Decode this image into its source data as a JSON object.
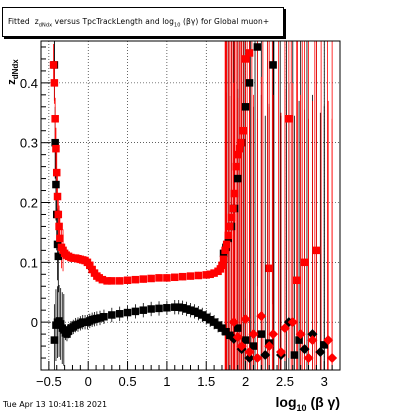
{
  "title": {
    "prefix": "Fitted",
    "z_main": "z",
    "z_sub": "dNdx",
    "middle": "versus TpcTrackLength and log",
    "log_sub": "10",
    "suffix": "(βγ) for Global muon+"
  },
  "timestamp": "Tue Apr 13 10:41:18 2021",
  "chart_data": {
    "type": "scatter",
    "title": "Fitted z_dNdx versus TpcTrackLength and log_10(βγ) for Global muon+",
    "xlabel": "log10(β γ)",
    "ylabel": "z_dNdx",
    "x_tick_labels": [
      "−0.5",
      "0",
      "0.5",
      "1",
      "1.5",
      "2",
      "2.5",
      "3"
    ],
    "y_tick_labels": [
      "0",
      "0.1",
      "0.2",
      "0.3",
      "0.4"
    ],
    "xlim": [
      -0.6,
      3.2
    ],
    "ylim": [
      -0.08,
      0.47
    ],
    "grid": true,
    "series": [
      {
        "color": "#000000",
        "marker": "square",
        "x": [
          -0.43,
          -0.41,
          -0.39,
          -0.37,
          -0.35,
          -0.33,
          -0.31,
          -0.29,
          -0.27,
          -0.25,
          -0.22,
          -0.19,
          -0.16,
          -0.13,
          -0.1,
          -0.07,
          -0.04,
          -0.01,
          0.02,
          0.05,
          0.08,
          0.11,
          0.15,
          0.2,
          0.3,
          0.4,
          0.5,
          0.6,
          0.7,
          0.8,
          0.9,
          1.0,
          1.1,
          1.15,
          1.2,
          1.25,
          1.3,
          1.35,
          1.4,
          1.45,
          1.5,
          1.55,
          1.6,
          1.65,
          1.7,
          1.75,
          1.8,
          1.85
        ],
        "y": [
          -0.03,
          -0.005,
          0.0,
          0.002,
          -0.003,
          -0.01,
          -0.013,
          -0.018,
          -0.02,
          -0.015,
          -0.01,
          -0.008,
          -0.005,
          -0.004,
          -0.002,
          0.0,
          0.0,
          0.0,
          0.002,
          0.004,
          0.005,
          0.006,
          0.007,
          0.009,
          0.012,
          0.014,
          0.016,
          0.018,
          0.02,
          0.022,
          0.023,
          0.024,
          0.025,
          0.025,
          0.024,
          0.022,
          0.02,
          0.018,
          0.015,
          0.012,
          0.008,
          0.004,
          0.0,
          -0.005,
          -0.01,
          -0.016,
          -0.022,
          -0.028
        ],
        "extra": [
          [
            -0.43,
            0.43
          ],
          [
            -0.42,
            0.3
          ],
          [
            -0.41,
            0.23
          ],
          [
            -0.4,
            0.18
          ],
          [
            -0.39,
            0.13
          ],
          [
            -0.38,
            0.11
          ],
          [
            1.72,
            0.115
          ],
          [
            1.75,
            0.125
          ],
          [
            1.78,
            0.14
          ],
          [
            1.82,
            0.16
          ],
          [
            1.86,
            0.19
          ],
          [
            1.9,
            0.24
          ],
          [
            1.95,
            0.3
          ],
          [
            2.0,
            0.36
          ],
          [
            2.05,
            0.4
          ],
          [
            2.15,
            0.46
          ],
          [
            2.35,
            0.43
          ],
          [
            1.9,
            -0.01
          ],
          [
            1.95,
            -0.045
          ],
          [
            2.0,
            -0.03
          ],
          [
            2.05,
            -0.06
          ],
          [
            2.1,
            -0.04
          ],
          [
            2.2,
            -0.02
          ],
          [
            2.25,
            -0.055
          ],
          [
            2.3,
            -0.035
          ],
          [
            2.45,
            -0.055
          ],
          [
            2.55,
            0.0
          ],
          [
            2.62,
            -0.055
          ],
          [
            2.68,
            -0.03
          ],
          [
            2.75,
            -0.045
          ],
          [
            2.85,
            -0.02
          ],
          [
            2.95,
            -0.05
          ],
          [
            3.0,
            -0.038
          ]
        ]
      },
      {
        "color": "#ff0000",
        "marker": "square",
        "x": [
          -0.44,
          -0.43,
          -0.42,
          -0.41,
          -0.4,
          -0.39,
          -0.38,
          -0.37,
          -0.36,
          -0.34,
          -0.32,
          -0.3,
          -0.28,
          -0.25,
          -0.22,
          -0.19,
          -0.16,
          -0.13,
          -0.1,
          -0.07,
          -0.04,
          -0.01,
          0.02,
          0.05,
          0.08,
          0.11,
          0.14,
          0.18,
          0.24,
          0.3,
          0.4,
          0.5,
          0.6,
          0.7,
          0.8,
          0.9,
          1.0,
          1.1,
          1.2,
          1.3,
          1.4,
          1.5,
          1.55,
          1.6,
          1.65,
          1.68,
          1.7,
          1.72
        ],
        "y": [
          0.43,
          0.4,
          0.34,
          0.29,
          0.25,
          0.21,
          0.18,
          0.16,
          0.14,
          0.125,
          0.12,
          0.115,
          0.112,
          0.11,
          0.108,
          0.107,
          0.107,
          0.106,
          0.105,
          0.104,
          0.103,
          0.1,
          0.095,
          0.088,
          0.082,
          0.077,
          0.074,
          0.071,
          0.069,
          0.069,
          0.069,
          0.07,
          0.071,
          0.072,
          0.073,
          0.074,
          0.074,
          0.075,
          0.076,
          0.077,
          0.078,
          0.079,
          0.08,
          0.082,
          0.085,
          0.089,
          0.095,
          0.105
        ],
        "extra": [
          [
            1.74,
            0.12
          ],
          [
            1.76,
            0.13
          ],
          [
            1.78,
            0.145
          ],
          [
            1.8,
            0.16
          ],
          [
            1.82,
            0.175
          ],
          [
            1.84,
            0.19
          ],
          [
            1.86,
            0.215
          ],
          [
            1.88,
            0.26
          ],
          [
            1.9,
            0.28
          ],
          [
            1.92,
            0.29
          ],
          [
            1.94,
            0.3
          ],
          [
            1.97,
            0.32
          ],
          [
            2.0,
            0.44
          ],
          [
            2.05,
            0.45
          ],
          [
            2.3,
            0.09
          ],
          [
            2.55,
            0.34
          ],
          [
            2.65,
            0.07
          ],
          [
            2.75,
            0.1
          ],
          [
            2.9,
            0.12
          ],
          [
            1.85,
            0.0
          ],
          [
            1.9,
            -0.025
          ],
          [
            1.95,
            -0.04
          ],
          [
            2.0,
            0.005
          ],
          [
            2.05,
            -0.05
          ],
          [
            2.1,
            -0.02
          ],
          [
            2.15,
            -0.06
          ],
          [
            2.2,
            0.01
          ],
          [
            2.3,
            -0.04
          ],
          [
            2.35,
            -0.02
          ],
          [
            2.45,
            -0.05
          ],
          [
            2.5,
            -0.01
          ],
          [
            2.6,
            0.0
          ],
          [
            2.7,
            -0.02
          ],
          [
            2.8,
            -0.06
          ],
          [
            3.05,
            -0.03
          ],
          [
            3.1,
            -0.06
          ],
          [
            2.85,
            -0.03
          ]
        ]
      }
    ]
  }
}
